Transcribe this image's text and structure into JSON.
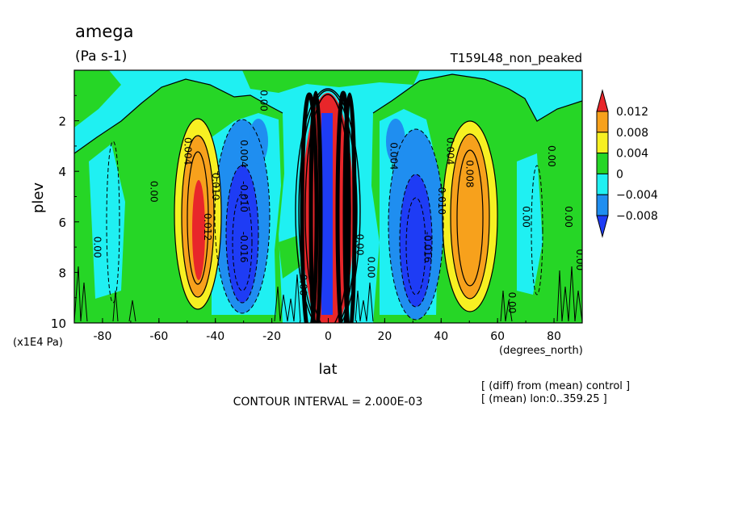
{
  "chart_data": {
    "type": "heatmap",
    "title": "amega",
    "subtitle": "(Pa s-1)",
    "experiment": "T159L48_non_peaked",
    "xlabel": "lat",
    "x_units": "(degrees_north)",
    "ylabel": "plev",
    "y_units": "(x1E4 Pa)",
    "xlim": [
      -90,
      90
    ],
    "ylim": [
      10,
      0
    ],
    "x_ticks": [
      "-80",
      "-60",
      "-40",
      "-20",
      "0",
      "20",
      "40",
      "60",
      "80"
    ],
    "x_tick_values": [
      -80,
      -60,
      -40,
      -20,
      0,
      20,
      40,
      60,
      80
    ],
    "y_ticks": [
      "2",
      "4",
      "6",
      "8",
      "10"
    ],
    "y_tick_values": [
      2,
      4,
      6,
      8,
      10
    ],
    "contour_interval_label": "CONTOUR INTERVAL = 2.000E-03",
    "notes": [
      "[ (diff) from (mean) control ]",
      "[ (mean) lon:0..359.25 ]"
    ],
    "colorbar": {
      "labels": [
        "0.012",
        "0.008",
        "0.004",
        "0",
        "−0.004",
        "−0.008"
      ],
      "levels": [
        0.012,
        0.008,
        0.004,
        0,
        -0.004,
        -0.008
      ],
      "colors": [
        "#e8262a",
        "#f7a11c",
        "#f7f022",
        "#26d626",
        "#1ff0f2",
        "#1f8ef0",
        "#1e3cf5"
      ]
    },
    "contour_labels": [
      {
        "text": "0.00",
        "lat": -83,
        "plev": 7.0
      },
      {
        "text": "0.00",
        "lat": -63,
        "plev": 4.8
      },
      {
        "text": "0.004",
        "lat": -51,
        "plev": 3.2
      },
      {
        "text": "0.012",
        "lat": -44,
        "plev": 6.2
      },
      {
        "text": "0.010",
        "lat": -41,
        "plev": 4.6
      },
      {
        "text": "0.004",
        "lat": -31,
        "plev": 3.3
      },
      {
        "text": "-0.010",
        "lat": -31,
        "plev": 5.0
      },
      {
        "text": "-0.016",
        "lat": -31,
        "plev": 7.0
      },
      {
        "text": "0.00",
        "lat": -24,
        "plev": 1.2
      },
      {
        "text": "0.00",
        "lat": -10,
        "plev": 8.5
      },
      {
        "text": "0.00",
        "lat": 10,
        "plev": 6.9
      },
      {
        "text": "0.00",
        "lat": 14,
        "plev": 7.8
      },
      {
        "text": "0.004",
        "lat": 22,
        "plev": 3.4
      },
      {
        "text": "-0.016",
        "lat": 34,
        "plev": 7.0
      },
      {
        "text": "-0.010",
        "lat": 39,
        "plev": 5.1
      },
      {
        "text": "0.004",
        "lat": 42,
        "plev": 3.2
      },
      {
        "text": "0.008",
        "lat": 49,
        "plev": 4.1
      },
      {
        "text": "0.00",
        "lat": 64,
        "plev": 9.2
      },
      {
        "text": "0.00",
        "lat": 69,
        "plev": 5.8
      },
      {
        "text": "0.00",
        "lat": 78,
        "plev": 3.4
      },
      {
        "text": "0.00",
        "lat": 84,
        "plev": 5.8
      },
      {
        "text": "0.00",
        "lat": 88,
        "plev": 7.5
      }
    ]
  }
}
